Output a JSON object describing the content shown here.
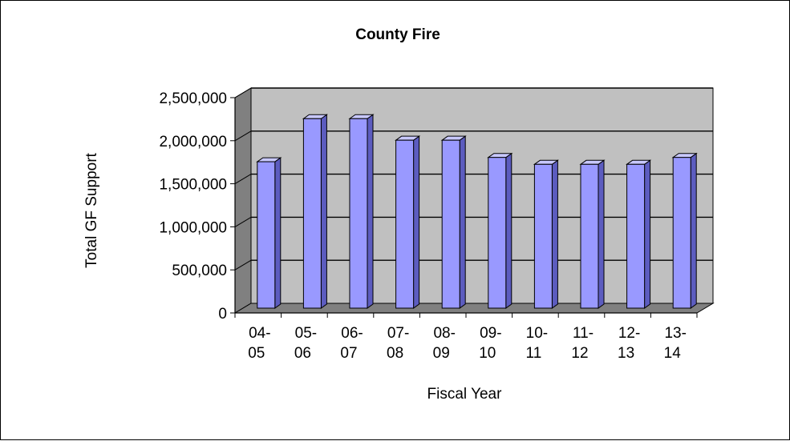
{
  "chart_data": {
    "type": "bar",
    "title": "County Fire",
    "xlabel": "Fiscal Year",
    "ylabel": "Total GF Support",
    "categories": [
      [
        "04-",
        "05"
      ],
      [
        "05-",
        "06"
      ],
      [
        "06-",
        "07"
      ],
      [
        "07-",
        "08"
      ],
      [
        "08-",
        "09"
      ],
      [
        "09-",
        "10"
      ],
      [
        "10-",
        "11"
      ],
      [
        "11-",
        "12"
      ],
      [
        "12-",
        "13"
      ],
      [
        "13-",
        "14"
      ]
    ],
    "values": [
      1700000,
      2200000,
      2200000,
      1950000,
      1950000,
      1750000,
      1670000,
      1670000,
      1670000,
      1750000
    ],
    "ylim": [
      0,
      2500000
    ],
    "yticks": [
      0,
      500000,
      1000000,
      1500000,
      2000000,
      2500000
    ],
    "ytick_labels": [
      "0",
      "500,000",
      "1,000,000",
      "1,500,000",
      "2,000,000",
      "2,500,000"
    ],
    "grid": true,
    "legend": "none",
    "colors": {
      "bar_front": "#9999ff",
      "bar_side": "#5c5cbf",
      "bar_top": "#c8c8ff",
      "wall": "#c0c0c0",
      "floor": "#808080",
      "side_wall": "#808080"
    }
  }
}
